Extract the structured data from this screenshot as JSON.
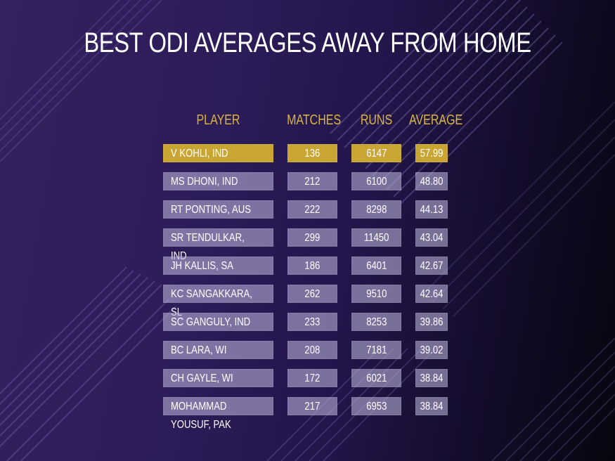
{
  "title": "BEST ODI AVERAGES AWAY FROM HOME",
  "colors": {
    "background_dark": "#2c1c58",
    "header_gold": "#d9b43a",
    "highlight_gold": "#c9a634",
    "cell_lavender": "#a49bc4"
  },
  "chart_data": {
    "type": "table",
    "title": "BEST ODI AVERAGES AWAY FROM HOME",
    "columns": [
      "PLAYER",
      "MATCHES",
      "RUNS",
      "AVERAGE"
    ],
    "highlighted_row": 0,
    "rows": [
      {
        "player": "V KOHLI, IND",
        "matches": "136",
        "runs": "6147",
        "average": "57.99"
      },
      {
        "player": "MS DHONI, IND",
        "matches": "212",
        "runs": "6100",
        "average": "48.80"
      },
      {
        "player": "RT PONTING, AUS",
        "matches": "222",
        "runs": "8298",
        "average": "44.13"
      },
      {
        "player": "SR TENDULKAR, IND",
        "matches": "299",
        "runs": "11450",
        "average": "43.04"
      },
      {
        "player": "JH KALLIS, SA",
        "matches": "186",
        "runs": "6401",
        "average": "42.67"
      },
      {
        "player": "KC SANGAKKARA, SL",
        "matches": "262",
        "runs": "9510",
        "average": "42.64"
      },
      {
        "player": "SC GANGULY, IND",
        "matches": "233",
        "runs": "8253",
        "average": "39.86"
      },
      {
        "player": "BC LARA, WI",
        "matches": "208",
        "runs": "7181",
        "average": "39.02"
      },
      {
        "player": "CH GAYLE, WI",
        "matches": "172",
        "runs": "6021",
        "average": "38.84"
      },
      {
        "player": "MOHAMMAD YOUSUF, PAK",
        "matches": "217",
        "runs": "6953",
        "average": "38.84"
      }
    ]
  }
}
